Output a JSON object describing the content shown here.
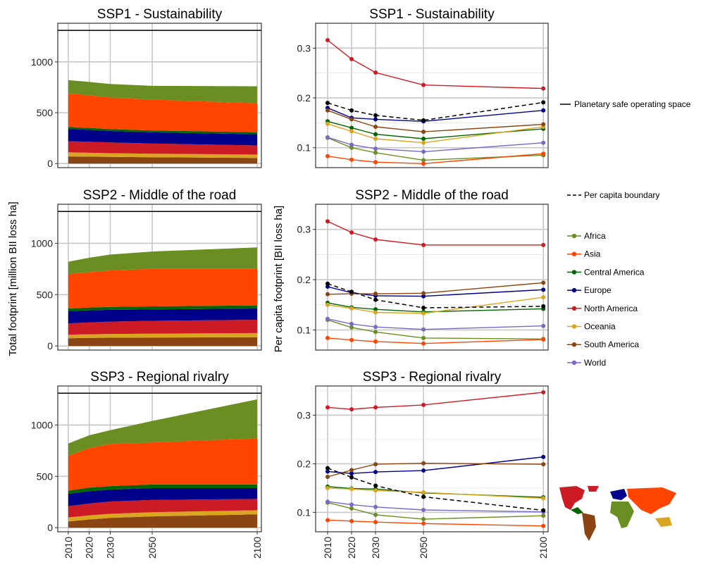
{
  "x_years": [
    2010,
    2020,
    2030,
    2050,
    2100
  ],
  "labels": {
    "left_ylabel": "Total footprint [million BII loss ha]",
    "right_ylabel": "Per capita footprint [BII loss ha]"
  },
  "legend": {
    "lines": [
      {
        "label": "Planetary safe operating space",
        "style": "solid"
      },
      {
        "label": "Per capita boundary",
        "style": "dashed"
      }
    ],
    "regions": [
      {
        "label": "Africa",
        "color": "#6B8E23"
      },
      {
        "label": "Asia",
        "color": "#FF4500"
      },
      {
        "label": "Central America",
        "color": "#006400"
      },
      {
        "label": "Europe",
        "color": "#00008B"
      },
      {
        "label": "North America",
        "color": "#CD1B26"
      },
      {
        "label": "Oceania",
        "color": "#DAA520"
      },
      {
        "label": "South America",
        "color": "#8B4513"
      },
      {
        "label": "World",
        "color": "#7B68C8"
      }
    ]
  },
  "chart_data": [
    {
      "type": "area",
      "title": "SSP1 - Sustainability",
      "ylabel": "Total footprint [million BII loss ha]",
      "x": [
        2010,
        2020,
        2030,
        2050,
        2100
      ],
      "ylim": [
        -40,
        1380
      ],
      "yticks": [
        0,
        500,
        1000
      ],
      "planetary_boundary": 1310,
      "stack_order": [
        "South America",
        "Oceania",
        "North America",
        "Europe",
        "Central America",
        "Asia",
        "Africa"
      ],
      "series": [
        {
          "name": "South America",
          "values": [
            70,
            68,
            66,
            62,
            55
          ]
        },
        {
          "name": "Oceania",
          "values": [
            40,
            38,
            36,
            35,
            33
          ]
        },
        {
          "name": "North America",
          "values": [
            110,
            108,
            105,
            100,
            90
          ]
        },
        {
          "name": "Europe",
          "values": [
            120,
            117,
            113,
            110,
            110
          ]
        },
        {
          "name": "Central America",
          "values": [
            20,
            20,
            19,
            19,
            20
          ]
        },
        {
          "name": "Asia",
          "values": [
            330,
            320,
            310,
            303,
            285
          ]
        },
        {
          "name": "Africa",
          "values": [
            130,
            132,
            133,
            135,
            167
          ]
        }
      ]
    },
    {
      "type": "line",
      "title": "SSP1 - Sustainability",
      "ylabel": "Per capita footprint [BII loss ha]",
      "x": [
        2010,
        2020,
        2030,
        2050,
        2100
      ],
      "ylim": [
        0.06,
        0.35
      ],
      "yticks": [
        0.1,
        0.2,
        0.3
      ],
      "series": [
        {
          "name": "Africa",
          "values": [
            0.12,
            0.1,
            0.09,
            0.075,
            0.085
          ]
        },
        {
          "name": "Asia",
          "values": [
            0.083,
            0.076,
            0.071,
            0.068,
            0.088
          ]
        },
        {
          "name": "Central America",
          "values": [
            0.153,
            0.14,
            0.127,
            0.118,
            0.138
          ]
        },
        {
          "name": "Europe",
          "values": [
            0.18,
            0.16,
            0.157,
            0.153,
            0.175
          ]
        },
        {
          "name": "North America",
          "values": [
            0.316,
            0.278,
            0.251,
            0.226,
            0.219
          ]
        },
        {
          "name": "Oceania",
          "values": [
            0.148,
            0.133,
            0.118,
            0.11,
            0.142
          ]
        },
        {
          "name": "South America",
          "values": [
            0.175,
            0.157,
            0.142,
            0.132,
            0.147
          ]
        },
        {
          "name": "World",
          "values": [
            0.121,
            0.106,
            0.098,
            0.092,
            0.11
          ]
        }
      ],
      "boundary": {
        "name": "Per capita boundary",
        "values": [
          0.19,
          0.175,
          0.165,
          0.155,
          0.191
        ]
      }
    },
    {
      "type": "area",
      "title": "SSP2 - Middle of the road",
      "ylabel": "Total footprint [million BII loss ha]",
      "x": [
        2010,
        2020,
        2030,
        2050,
        2100
      ],
      "ylim": [
        -40,
        1380
      ],
      "yticks": [
        0,
        500,
        1000
      ],
      "planetary_boundary": 1310,
      "stack_order": [
        "South America",
        "Oceania",
        "North America",
        "Europe",
        "Central America",
        "Asia",
        "Africa"
      ],
      "series": [
        {
          "name": "South America",
          "values": [
            75,
            78,
            80,
            82,
            85
          ]
        },
        {
          "name": "Oceania",
          "values": [
            35,
            36,
            37,
            38,
            40
          ]
        },
        {
          "name": "North America",
          "values": [
            110,
            115,
            120,
            125,
            130
          ]
        },
        {
          "name": "Europe",
          "values": [
            120,
            118,
            115,
            110,
            110
          ]
        },
        {
          "name": "Central America",
          "values": [
            25,
            27,
            28,
            30,
            30
          ]
        },
        {
          "name": "Asia",
          "values": [
            335,
            345,
            355,
            365,
            355
          ]
        },
        {
          "name": "Africa",
          "values": [
            120,
            140,
            155,
            170,
            210
          ]
        }
      ]
    },
    {
      "type": "line",
      "title": "SSP2 - Middle of the road",
      "ylabel": "Per capita footprint [BII loss ha]",
      "x": [
        2010,
        2020,
        2030,
        2050,
        2100
      ],
      "ylim": [
        0.06,
        0.35
      ],
      "yticks": [
        0.1,
        0.2,
        0.3
      ],
      "series": [
        {
          "name": "Africa",
          "values": [
            0.12,
            0.105,
            0.096,
            0.084,
            0.082
          ]
        },
        {
          "name": "Asia",
          "values": [
            0.084,
            0.08,
            0.077,
            0.073,
            0.081
          ]
        },
        {
          "name": "Central America",
          "values": [
            0.154,
            0.145,
            0.141,
            0.136,
            0.142
          ]
        },
        {
          "name": "Europe",
          "values": [
            0.186,
            0.174,
            0.168,
            0.167,
            0.18
          ]
        },
        {
          "name": "North America",
          "values": [
            0.316,
            0.294,
            0.28,
            0.269,
            0.269
          ]
        },
        {
          "name": "Oceania",
          "values": [
            0.15,
            0.143,
            0.135,
            0.133,
            0.165
          ]
        },
        {
          "name": "South America",
          "values": [
            0.171,
            0.172,
            0.172,
            0.173,
            0.194
          ]
        },
        {
          "name": "World",
          "values": [
            0.122,
            0.112,
            0.106,
            0.101,
            0.108
          ]
        }
      ],
      "boundary": {
        "name": "Per capita boundary",
        "values": [
          0.192,
          0.176,
          0.16,
          0.144,
          0.147
        ]
      }
    },
    {
      "type": "area",
      "title": "SSP3 - Regional rivalry",
      "ylabel": "Total footprint [million BII loss ha]",
      "x": [
        2010,
        2020,
        2030,
        2050,
        2100
      ],
      "ylim": [
        -40,
        1380
      ],
      "yticks": [
        0,
        500,
        1000
      ],
      "planetary_boundary": 1310,
      "stack_order": [
        "South America",
        "Oceania",
        "North America",
        "Europe",
        "Central America",
        "Asia",
        "Africa"
      ],
      "series": [
        {
          "name": "South America",
          "values": [
            60,
            80,
            95,
            110,
            130
          ]
        },
        {
          "name": "Oceania",
          "values": [
            40,
            40,
            40,
            40,
            40
          ]
        },
        {
          "name": "North America",
          "values": [
            110,
            115,
            120,
            120,
            110
          ]
        },
        {
          "name": "Europe",
          "values": [
            120,
            120,
            115,
            115,
            105
          ]
        },
        {
          "name": "Central America",
          "values": [
            30,
            35,
            35,
            35,
            35
          ]
        },
        {
          "name": "Asia",
          "values": [
            340,
            385,
            410,
            410,
            450
          ]
        },
        {
          "name": "Africa",
          "values": [
            120,
            125,
            135,
            210,
            380
          ]
        }
      ]
    },
    {
      "type": "line",
      "title": "SSP3 - Regional rivalry",
      "ylabel": "Per capita footprint [BII loss ha]",
      "x": [
        2010,
        2020,
        2030,
        2050,
        2100
      ],
      "ylim": [
        0.06,
        0.36
      ],
      "yticks": [
        0.1,
        0.2,
        0.3
      ],
      "series": [
        {
          "name": "Africa",
          "values": [
            0.12,
            0.108,
            0.095,
            0.086,
            0.093
          ]
        },
        {
          "name": "Asia",
          "values": [
            0.084,
            0.082,
            0.08,
            0.077,
            0.072
          ]
        },
        {
          "name": "Central America",
          "values": [
            0.153,
            0.149,
            0.148,
            0.14,
            0.131
          ]
        },
        {
          "name": "Europe",
          "values": [
            0.184,
            0.18,
            0.183,
            0.186,
            0.214
          ]
        },
        {
          "name": "North America",
          "values": [
            0.316,
            0.312,
            0.316,
            0.321,
            0.347
          ]
        },
        {
          "name": "Oceania",
          "values": [
            0.15,
            0.148,
            0.145,
            0.141,
            0.129
          ]
        },
        {
          "name": "South America",
          "values": [
            0.173,
            0.187,
            0.199,
            0.201,
            0.199
          ]
        },
        {
          "name": "World",
          "values": [
            0.122,
            0.116,
            0.111,
            0.105,
            0.101
          ]
        }
      ],
      "boundary": {
        "name": "Per capita boundary",
        "values": [
          0.191,
          0.172,
          0.155,
          0.132,
          0.104
        ]
      }
    }
  ]
}
